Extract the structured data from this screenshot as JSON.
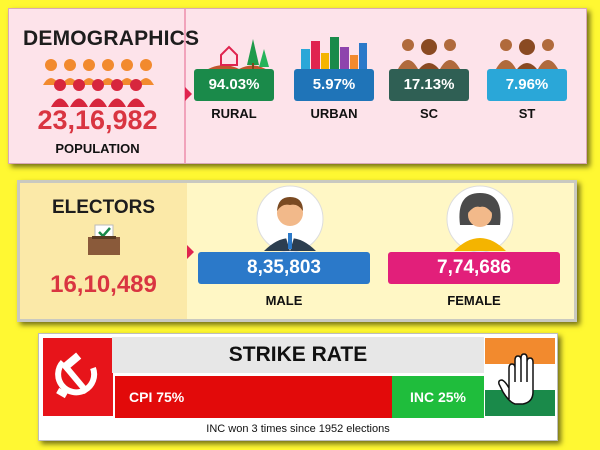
{
  "demographics": {
    "title": "DEMOGRAPHICS",
    "population_value": "23,16,982",
    "population_label": "POPULATION",
    "stats": [
      {
        "value": "94.03%",
        "label": "RURAL",
        "color": "#1a8a4a",
        "icon": "rural-landscape-icon"
      },
      {
        "value": "5.97%",
        "label": "URBAN",
        "color": "#1f74b8",
        "icon": "city-skyline-icon"
      },
      {
        "value": "17.13%",
        "label": "SC",
        "color": "#2f5f54",
        "icon": "people-group-icon"
      },
      {
        "value": "7.96%",
        "label": "ST",
        "color": "#2aa7d8",
        "icon": "people-group-icon"
      }
    ]
  },
  "electors": {
    "title": "ELECTORS",
    "total": "16,10,489",
    "male": {
      "value": "8,35,803",
      "label": "MALE",
      "color": "#2b79c9"
    },
    "female": {
      "value": "7,74,686",
      "label": "FEMALE",
      "color": "#e21f7a"
    }
  },
  "strike_rate": {
    "title": "STRIKE RATE",
    "cpi_label": "CPI 75%",
    "cpi_share": 0.75,
    "inc_label": "INC 25%",
    "inc_share": 0.25,
    "note": "INC won 3 times since 1952 elections",
    "cpi_color": "#e20a0a",
    "inc_color": "#1fbd3c"
  }
}
